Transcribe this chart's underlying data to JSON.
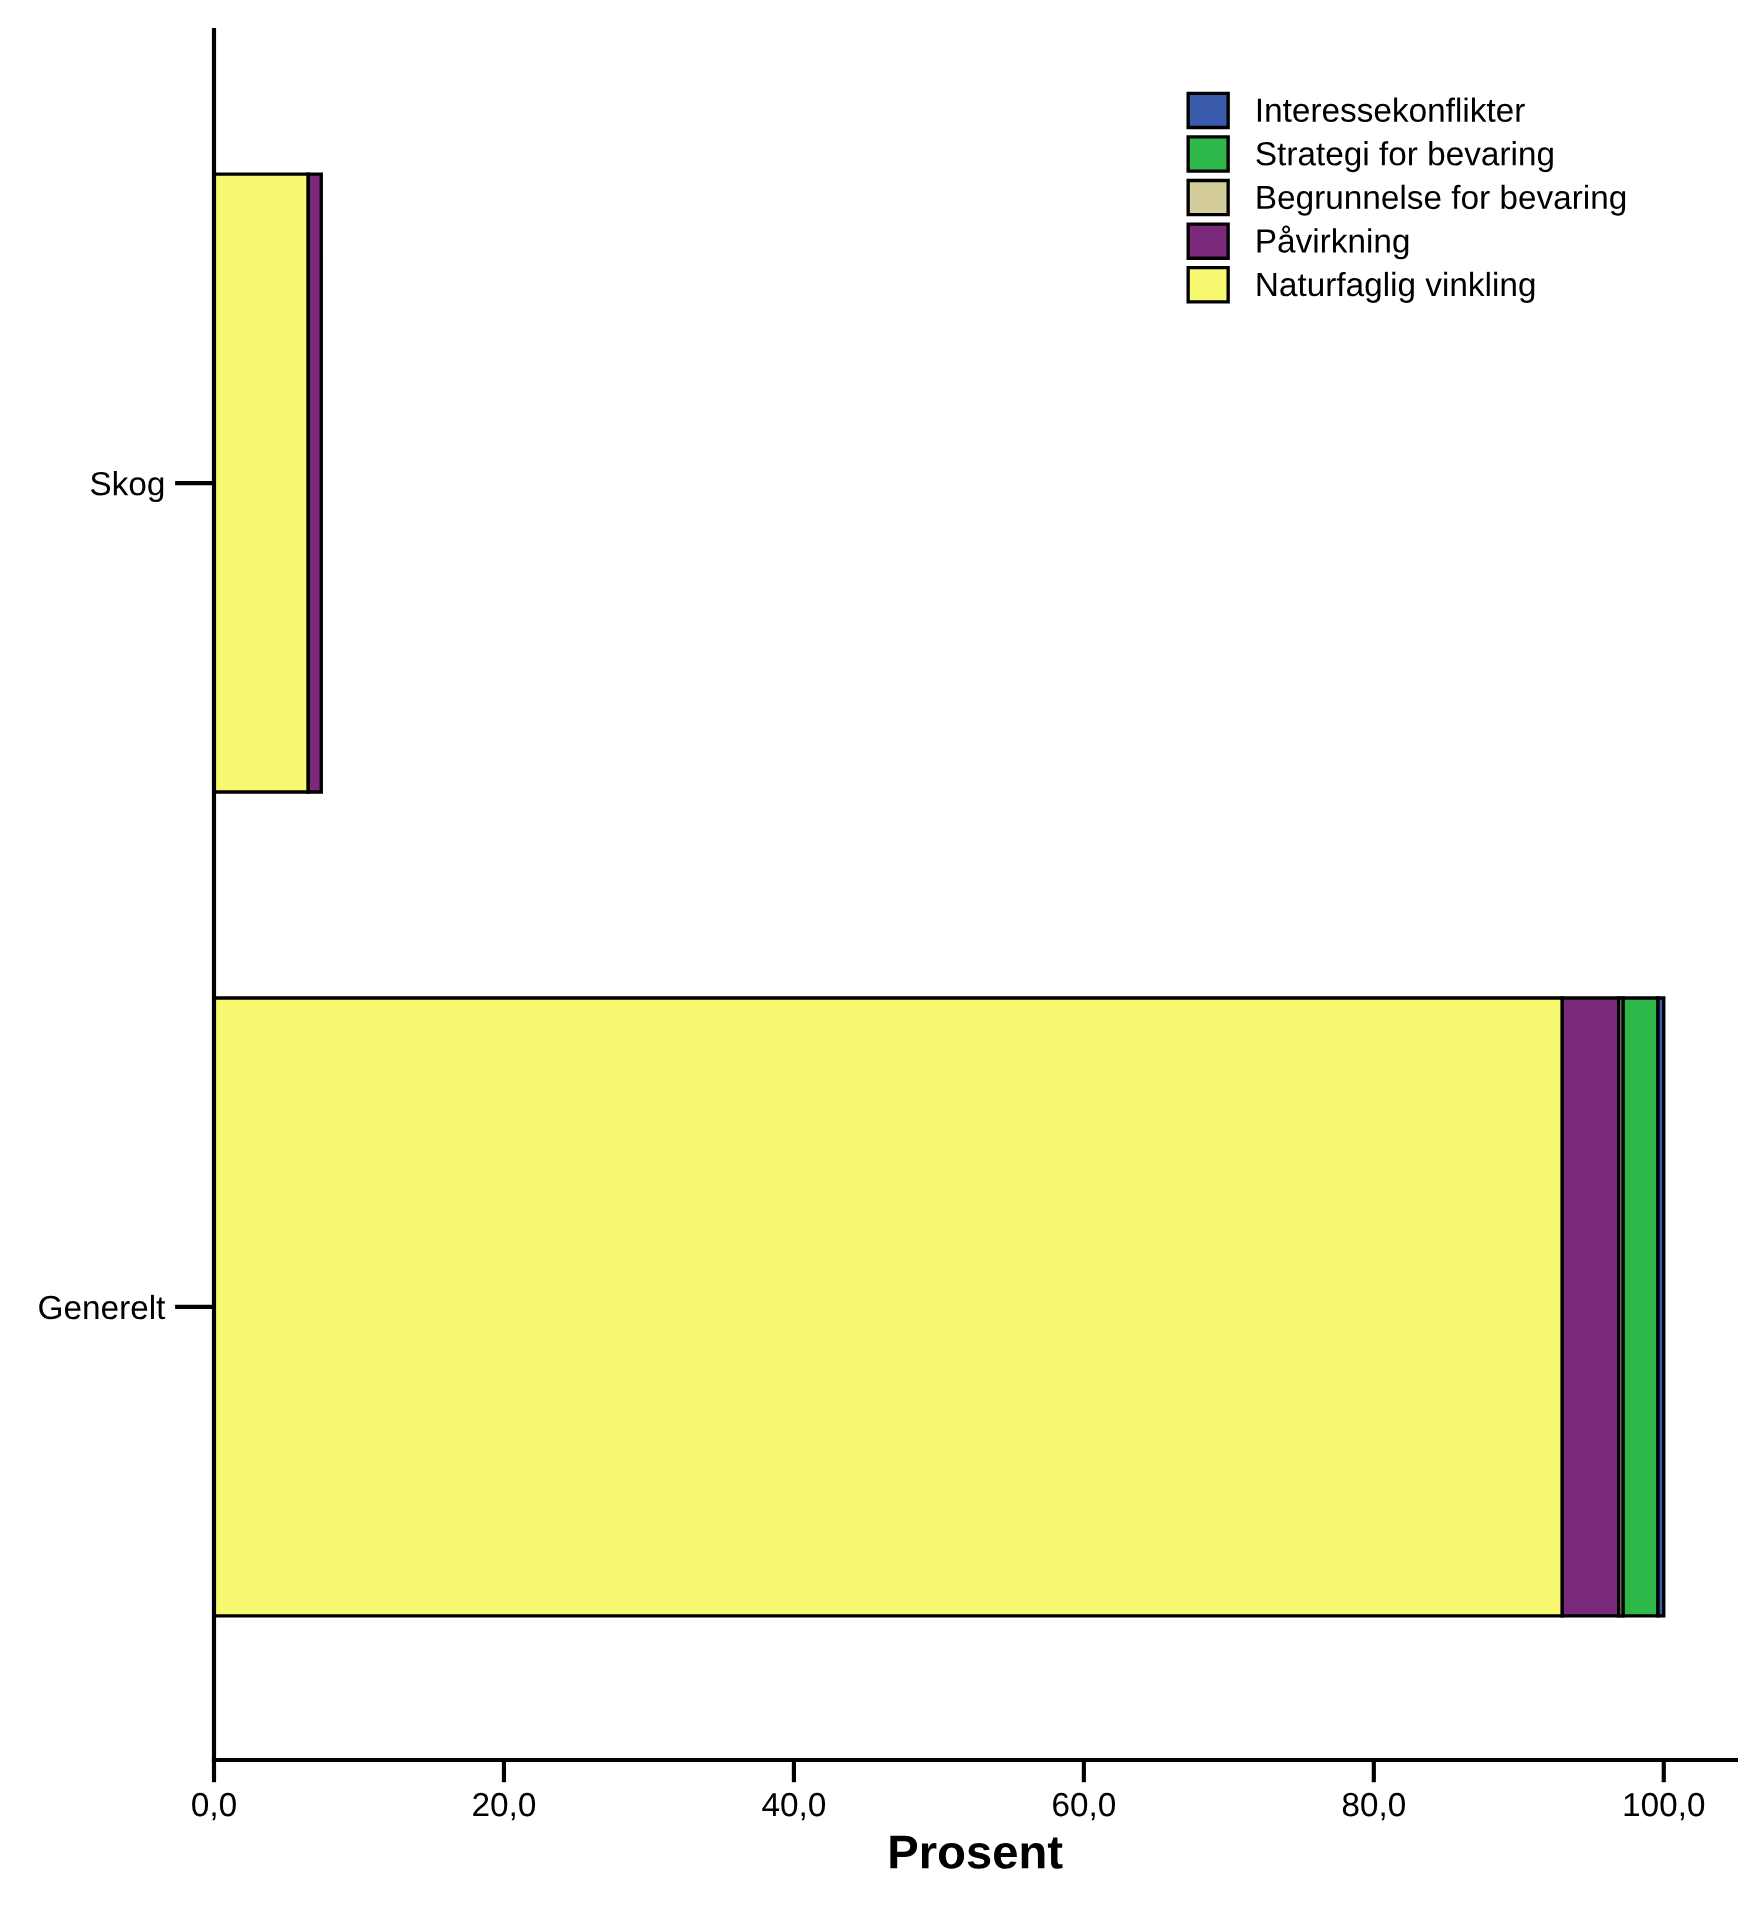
{
  "chart_data": {
    "type": "bar",
    "orientation": "horizontal",
    "stacked": true,
    "xlabel": "Prosent",
    "categories": [
      "Skog",
      "Generelt"
    ],
    "series": [
      {
        "name": "Naturfaglig vinkling",
        "color": "#f9f871",
        "values": [
          6.5,
          93.0
        ]
      },
      {
        "name": "Påvirkning",
        "color": "#7b2a7b",
        "values": [
          0.9,
          3.9
        ]
      },
      {
        "name": "Begrunnelse for bevaring",
        "color": "#d4cd9b",
        "values": [
          null,
          0.3
        ]
      },
      {
        "name": "Strategi for bevaring",
        "color": "#2fb84a",
        "values": [
          null,
          2.4
        ]
      },
      {
        "name": "Interessekonflikter",
        "color": "#3a5bab",
        "values": [
          null,
          0.4
        ]
      }
    ],
    "xlim": [
      0,
      105
    ],
    "xticks": [
      {
        "value": 0,
        "label": "0,0"
      },
      {
        "value": 20,
        "label": "20,0"
      },
      {
        "value": 40,
        "label": "40,0"
      },
      {
        "value": 60,
        "label": "60,0"
      },
      {
        "value": 80,
        "label": "80,0"
      },
      {
        "value": 100,
        "label": "100,0"
      }
    ],
    "legend": "top right",
    "grid": false
  }
}
